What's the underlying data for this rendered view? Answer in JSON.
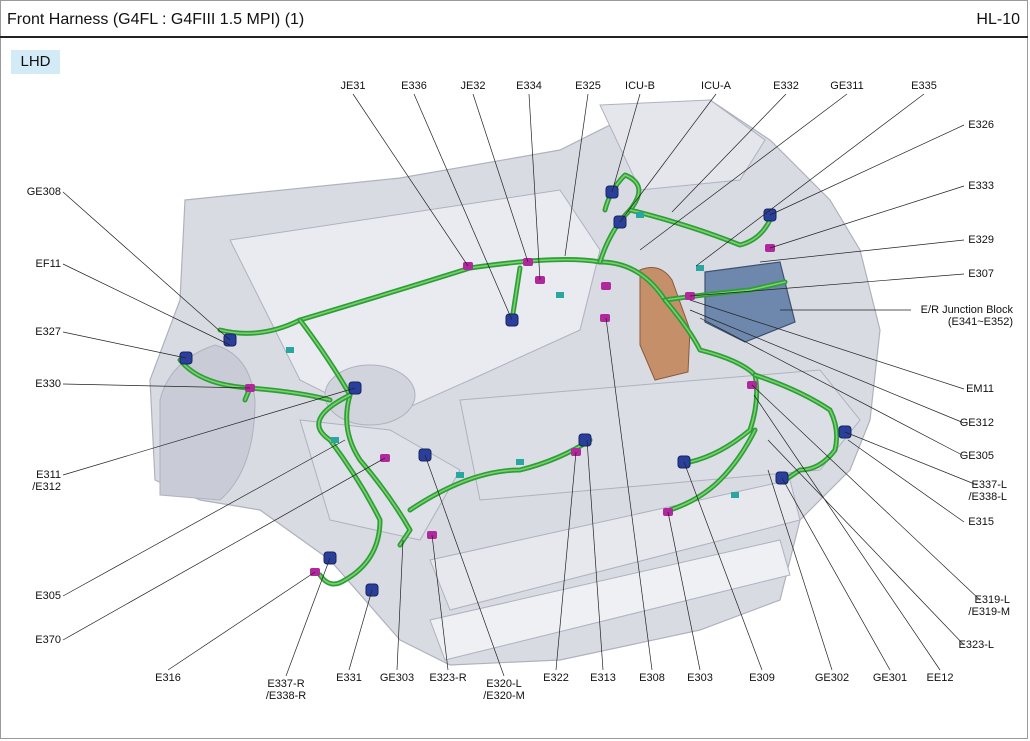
{
  "header": {
    "title": "Front Harness (G4FL : G4FIII 1.5 MPI) (1)",
    "page_code": "HL-10"
  },
  "variant_tag": "LHD",
  "colors": {
    "harness": "#2f9e3a",
    "harness_light": "#7ad36a",
    "connector_blue": "#2a3f9c",
    "connector_magenta": "#b0289c",
    "connector_teal": "#2aa6a0",
    "body": "#d9dbe3",
    "leader": "#222222",
    "tag_bg": "#d2ebf7"
  },
  "top_labels": [
    "JE31",
    "E336",
    "JE32",
    "E334",
    "E325",
    "ICU-B",
    "ICU-A",
    "E332",
    "GE311",
    "E335"
  ],
  "right_labels": [
    "E326",
    "E333",
    "E329",
    "E307",
    "E/R Junction Block\n(E341~E352)",
    "EM11",
    "GE312",
    "GE305",
    "E337-L\n/E338-L",
    "E315",
    "E319-L\n/E319-M",
    "E323-L"
  ],
  "left_labels": [
    "GE308",
    "EF11",
    "E327",
    "E330",
    "E311\n/E312",
    "E305",
    "E370"
  ],
  "bottom_labels": [
    "E316",
    "E337-R\n/E338-R",
    "E331",
    "GE303",
    "E323-R",
    "E320-L\n/E320-M",
    "E322",
    "E313",
    "E308",
    "E303",
    "E309",
    "GE302",
    "GE301",
    "EE12"
  ]
}
